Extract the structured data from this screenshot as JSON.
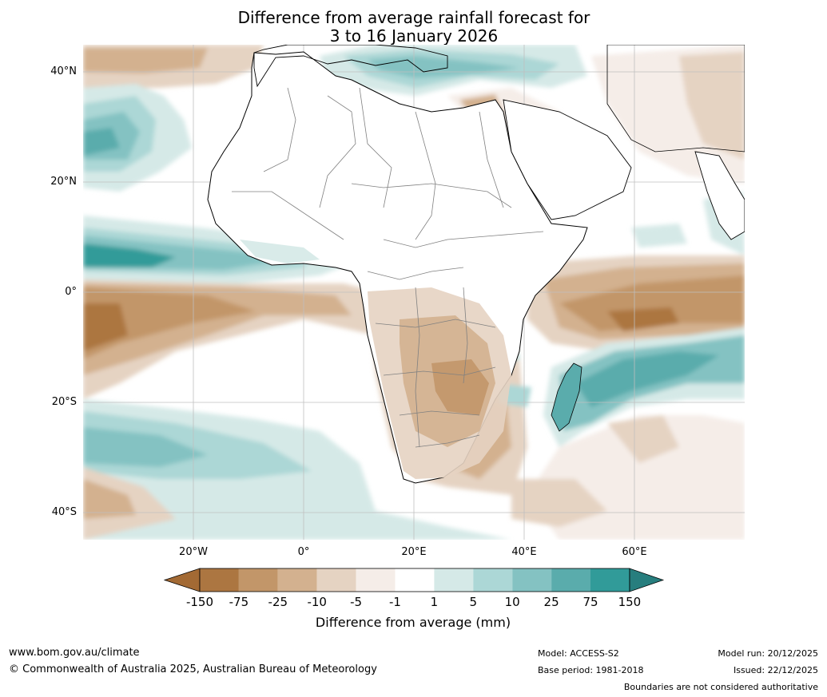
{
  "title": {
    "line1": "Difference from average rainfall forecast for",
    "line2": "3 to 16 January 2026"
  },
  "map": {
    "lat_labels": [
      "40°N",
      "20°N",
      "0°",
      "20°S",
      "40°S"
    ],
    "lon_labels": [
      "20°W",
      "0°",
      "20°E",
      "40°E",
      "60°E"
    ]
  },
  "legend": {
    "title": "Difference from average (mm)",
    "ticks": [
      "-150",
      "-75",
      "-25",
      "-10",
      "-5",
      "-1",
      "1",
      "5",
      "10",
      "25",
      "75",
      "150"
    ],
    "colors": [
      "#a36a34",
      "#ac7641",
      "#c29669",
      "#d3b18f",
      "#e5d3c2",
      "#f5ede8",
      "#ffffff",
      "#d5e9e7",
      "#acd7d6",
      "#84c2c2",
      "#5aacac",
      "#319b99",
      "#277e7e"
    ],
    "ocean_color": "#ffffff",
    "land_line_color": "#000000",
    "border_color": "#808080"
  },
  "footer": {
    "url": "www.bom.gov.au/climate",
    "copyright": "© Commonwealth of Australia 2025, Australian Bureau of Meteorology",
    "model": "Model: ACCESS-S2",
    "base_period": "Base period: 1981-2018",
    "model_run": "Model run: 20/12/2025",
    "issued": "Issued: 22/12/2025",
    "disclaimer": "Boundaries are not considered authoritative"
  }
}
